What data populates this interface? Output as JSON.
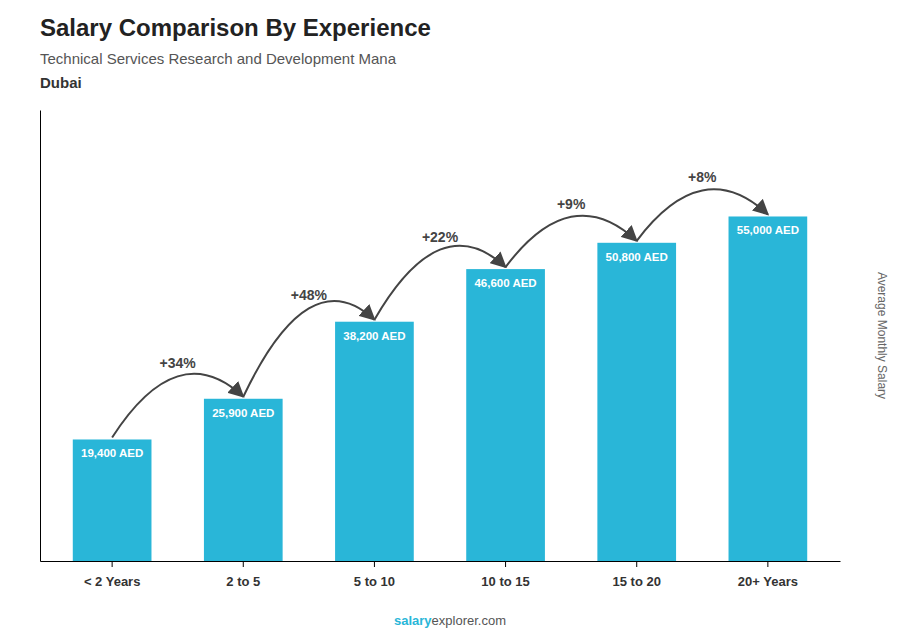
{
  "chart_data": {
    "type": "bar",
    "title": "Salary Comparison By Experience",
    "subtitle": "Technical Services Research and Development Mana",
    "location": "Dubai",
    "y_label": "Average Monthly Salary",
    "categories": [
      "< 2 Years",
      "2 to 5",
      "5 to 10",
      "10 to 15",
      "15 to 20",
      "20+ Years"
    ],
    "values": [
      19400,
      25900,
      38200,
      46600,
      50800,
      55000
    ],
    "value_labels": [
      "19,400 AED",
      "25,900 AED",
      "38,200 AED",
      "46,600 AED",
      "50,800 AED",
      "55,000 AED"
    ],
    "data_labels": true,
    "annotations": [
      "+34%",
      "+48%",
      "+22%",
      "+9%",
      "+8%"
    ],
    "watermark": [
      "salary",
      "explorer.com"
    ],
    "color": "#29b6d8",
    "ylim": [
      0,
      72000
    ],
    "tick_labels": "x"
  }
}
